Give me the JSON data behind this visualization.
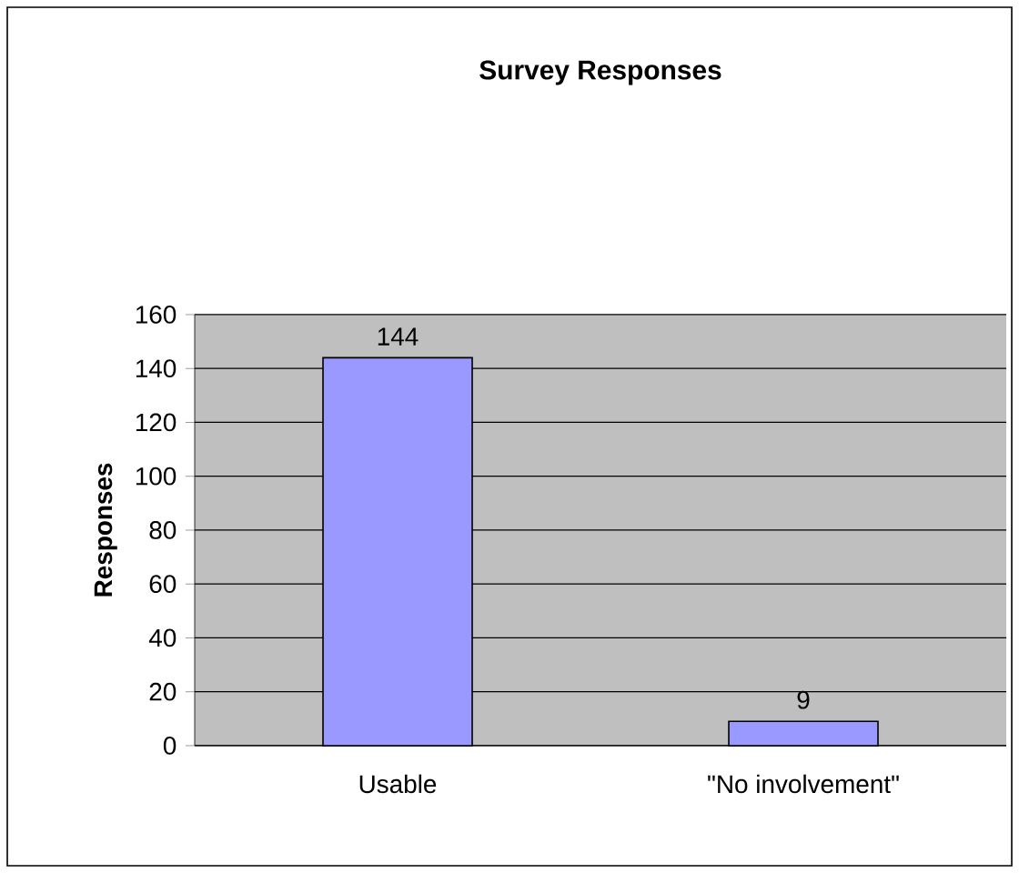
{
  "chart_data": {
    "type": "bar",
    "title": "Survey Responses",
    "ylabel": "Responses",
    "categories": [
      "Usable",
      "\"No involvement\""
    ],
    "values": [
      144,
      9
    ],
    "color": "#9999ff",
    "ylim": [
      0,
      160
    ],
    "yticks": [
      0,
      20,
      40,
      60,
      80,
      100,
      120,
      140,
      160
    ],
    "grid": "y",
    "data_labels": true
  }
}
